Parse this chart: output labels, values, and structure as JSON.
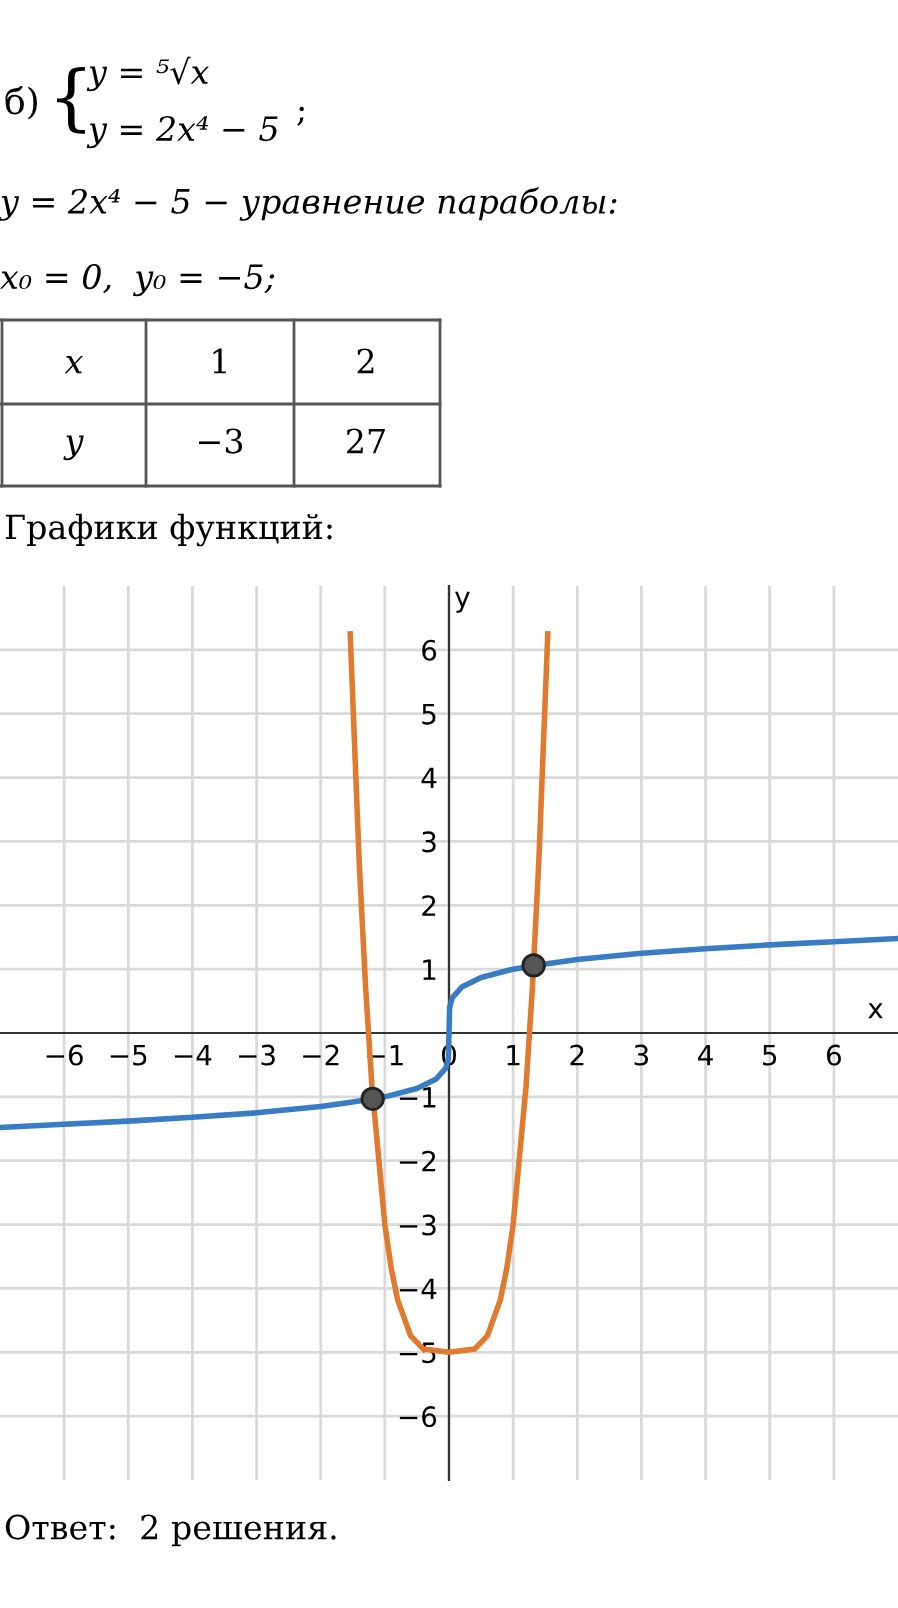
{
  "chart_data": {
    "type": "line",
    "title": "Графики функций:",
    "xlabel": "x",
    "ylabel": "y",
    "annotations": [
      "б)",
      "{",
      "y = ⁵√x",
      "y = 2x⁴ − 5",
      ";",
      "y = 2x⁴ − 5 − уравнение параболы:",
      "x₀ = 0,  y₀ = −5;",
      "x",
      "1",
      "2",
      "y",
      "−3",
      "27",
      "Ответ:  2 решения."
    ],
    "xlim": [
      -7,
      7
    ],
    "ylim": [
      -7,
      7
    ],
    "xticks": [
      -6,
      -5,
      -4,
      -3,
      -2,
      -1,
      0,
      1,
      2,
      3,
      4,
      5,
      6
    ],
    "yticks": [
      -6,
      -5,
      -4,
      -3,
      -2,
      -1,
      1,
      2,
      3,
      4,
      5,
      6
    ],
    "grid": true,
    "legend": false,
    "line_style": "solid",
    "series": [
      {
        "color": "#3a7cc4",
        "marker": "none",
        "x": [
          -7,
          -6,
          -5,
          -4,
          -3,
          -2,
          -1.5,
          -1,
          -0.5,
          -0.2,
          -0.05,
          -0.01,
          0,
          0.01,
          0.05,
          0.2,
          0.5,
          1,
          1.5,
          2,
          3,
          4,
          5,
          6,
          7
        ],
        "values": [
          -1.48,
          -1.43,
          -1.38,
          -1.32,
          -1.25,
          -1.15,
          -1.08,
          -1,
          -0.87,
          -0.72,
          -0.55,
          -0.4,
          0,
          0.4,
          0.55,
          0.72,
          0.87,
          1,
          1.08,
          1.15,
          1.25,
          1.32,
          1.38,
          1.43,
          1.48
        ]
      },
      {
        "color": "#e07a2f",
        "marker": "none",
        "x": [
          -1.54,
          -1.4,
          -1.3,
          -1.2,
          -1,
          -0.9,
          -0.8,
          -0.6,
          -0.4,
          0,
          0.4,
          0.6,
          0.8,
          0.9,
          1,
          1.2,
          1.3,
          1.4,
          1.54
        ],
        "values": [
          6.25,
          2.68,
          0.71,
          -0.85,
          -3,
          -3.69,
          -4.18,
          -4.74,
          -4.95,
          -5,
          -4.95,
          -4.74,
          -4.18,
          -3.69,
          -3,
          -0.85,
          0.71,
          2.68,
          6.25
        ]
      },
      {
        "type": "scatter",
        "color": "#555555",
        "marker": "circle",
        "x": [
          -1.19,
          1.32
        ],
        "values": [
          -1.03,
          1.06
        ]
      }
    ]
  }
}
